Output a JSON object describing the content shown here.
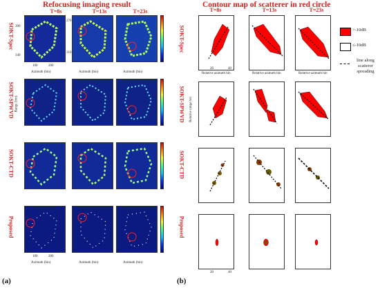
{
  "left": {
    "title": "Refocusing imaging result",
    "times": [
      "T=8s",
      "T=13s",
      "T=23s"
    ],
    "methods": [
      "SOKT-Spec",
      "SOKT-SPWVD",
      "SOKT-CTD",
      "Proposed"
    ],
    "xlabel": "Azimuth (bin)",
    "ylabel": "Range (bin)",
    "xticks": [
      "100",
      "200"
    ],
    "yticks_a": [
      "300",
      "340"
    ],
    "yticks_b": [
      "270",
      "310"
    ]
  },
  "right": {
    "title": "Contour map of scatterer in red circle",
    "times": [
      "T=8s",
      "T=13s",
      "T=23s"
    ],
    "xlabel": "Relative azimuth bin",
    "ylabel": "Relative range bin",
    "xticks": [
      "20",
      "40"
    ]
  },
  "legend": {
    "above": ">-10dB",
    "below": "≤-10dB",
    "line": "line along scatterer spreading",
    "above_color": "#ff0000"
  },
  "sublabels": [
    "(a)",
    "(b)"
  ]
}
